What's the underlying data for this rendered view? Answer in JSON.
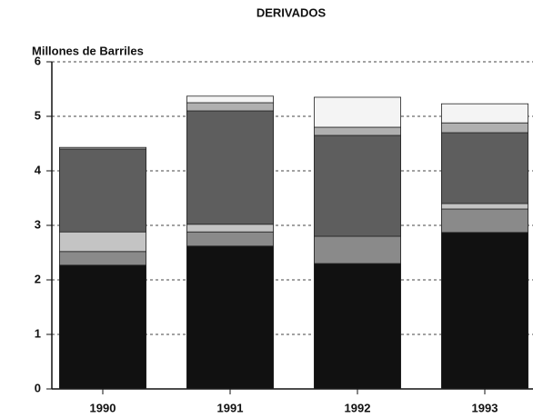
{
  "chart_data": {
    "type": "bar",
    "stacked": true,
    "title": "DERIVADOS",
    "y_label": "Millones de Barriles",
    "categories": [
      "1990",
      "1991",
      "1992",
      "1993"
    ],
    "series": [
      {
        "color": "#111111",
        "values": [
          2.27,
          2.62,
          2.3,
          2.87
        ]
      },
      {
        "color": "#8a8a8a",
        "values": [
          0.25,
          0.26,
          0.5,
          0.43
        ]
      },
      {
        "color": "#c4c4c4",
        "values": [
          0.36,
          0.14,
          0,
          0.1
        ]
      },
      {
        "color": "#5e5e5e",
        "values": [
          1.52,
          2.08,
          1.85,
          1.3
        ]
      },
      {
        "color": "#b0b0b0",
        "values": [
          0.03,
          0.15,
          0.15,
          0.18
        ]
      },
      {
        "color": "#f4f4f4",
        "values": [
          0,
          0.12,
          0.55,
          0.35
        ]
      }
    ],
    "ylim": [
      0,
      6
    ],
    "yticks": [
      0,
      1,
      2,
      3,
      4,
      5,
      6
    ],
    "grid": true
  }
}
